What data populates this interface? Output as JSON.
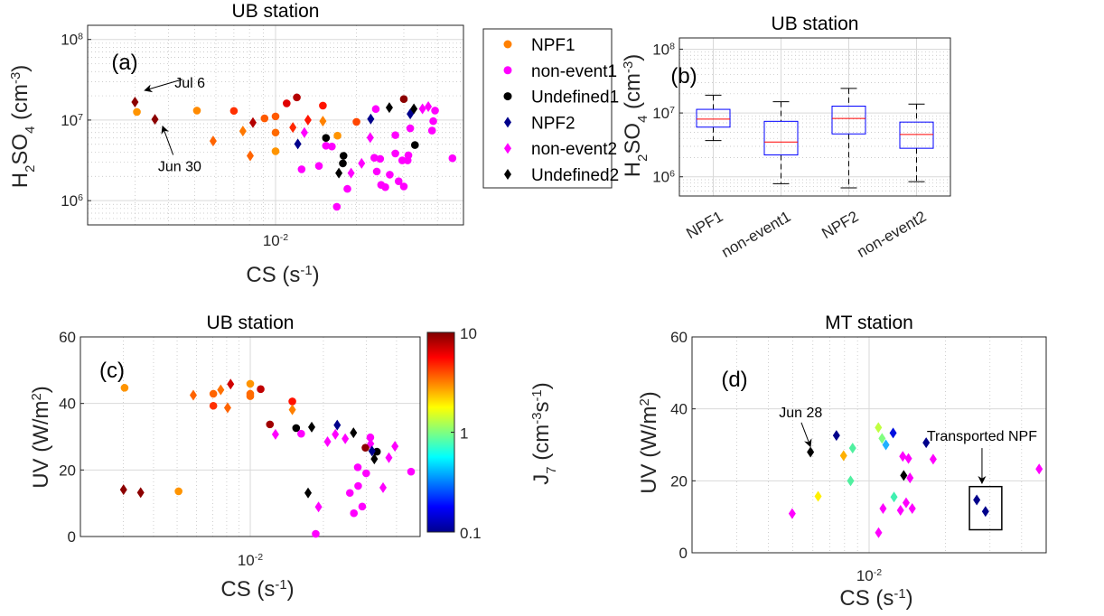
{
  "colors": {
    "npf1": "#FF8000",
    "non_event": "#FF00FF",
    "undefined": "#000000",
    "npf2": "#00008B",
    "box": "#0000FF",
    "median": "#FF0000"
  },
  "chart_data": [
    {
      "panel": "a",
      "type": "scatter",
      "title": "UB station",
      "panel_label": "(a)",
      "xlabel": "CS (s^{-1})",
      "ylabel": "H_{2}SO_{4} (cm^{-3})",
      "xscale": "log",
      "yscale": "log",
      "xlim": [
        0.002,
        0.05
      ],
      "ylim": [
        500000,
        150000000
      ],
      "xticks": [
        {
          "value": 0.01,
          "label": "10^{-2}"
        }
      ],
      "yticks": [
        {
          "value": 1000000,
          "label": "10^{6}"
        },
        {
          "value": 10000000,
          "label": "10^{7}"
        },
        {
          "value": 100000000,
          "label": "10^{8}"
        }
      ],
      "grid": true,
      "legend": {
        "position": "outside-right",
        "entries": [
          {
            "label": "NPF1",
            "marker": "circle",
            "color": "#FF8000"
          },
          {
            "label": "non-event1",
            "marker": "circle",
            "color": "#FF00FF"
          },
          {
            "label": "Undefined1",
            "marker": "circle",
            "color": "#000000"
          },
          {
            "label": "NPF2",
            "marker": "diamond",
            "color": "#00008B"
          },
          {
            "label": "non-event2",
            "marker": "diamond",
            "color": "#FF00FF"
          },
          {
            "label": "Undefined2",
            "marker": "diamond",
            "color": "#000000"
          }
        ]
      },
      "annotations": [
        {
          "text": "Jul 6",
          "text_at": [
            0.0048,
            28600000
          ],
          "arrow_from": [
            0.0045,
            32000000
          ],
          "arrow_to": [
            0.00326,
            23300000
          ]
        },
        {
          "text": "Jun 30",
          "text_at": [
            0.0044,
            2640000
          ],
          "arrow_from": [
            0.00416,
            3700000
          ],
          "arrow_to": [
            0.0038,
            8400000
          ]
        }
      ],
      "points": [
        [
          0.00305,
          12600000,
          "#FF9400",
          "o"
        ],
        [
          0.0051,
          13100000,
          "#FF8A00",
          "o"
        ],
        [
          0.007,
          13000000,
          "#FF3000",
          "o"
        ],
        [
          0.0091,
          10500000,
          "#FF5A00",
          "o"
        ],
        [
          0.01,
          11100000,
          "#FF5A00",
          "o"
        ],
        [
          0.01,
          7000000,
          "#FF6A00",
          "o"
        ],
        [
          0.01,
          4100000,
          "#FF9400",
          "o"
        ],
        [
          0.011,
          16100000,
          "#E00000",
          "o"
        ],
        [
          0.012,
          19100000,
          "#B40000",
          "o"
        ],
        [
          0.015,
          15100000,
          "#FF1400",
          "o"
        ],
        [
          0.02,
          9500000,
          "#FF4600",
          "o"
        ],
        [
          0.017,
          6400000,
          "#FF9400",
          "o"
        ],
        [
          0.03,
          18200000,
          "#8C0000",
          "o"
        ],
        [
          0.0154,
          6000000,
          "#000000",
          "o"
        ],
        [
          0.0179,
          3600000,
          "#000000",
          "o"
        ],
        [
          0.0178,
          2900000,
          "#000000",
          "o"
        ],
        [
          0.033,
          4900000,
          "#000000",
          "o"
        ],
        [
          0.0125,
          2450000,
          "#FF00FF",
          "o"
        ],
        [
          0.0145,
          2700000,
          "#FF00FF",
          "o"
        ],
        [
          0.0154,
          4800000,
          "#FF00FF",
          "o"
        ],
        [
          0.0162,
          4700000,
          "#FF00FF",
          "o"
        ],
        [
          0.0169,
          840000,
          "#FF00FF",
          "o"
        ],
        [
          0.0185,
          1400000,
          "#FF00FF",
          "o"
        ],
        [
          0.0236,
          13700000,
          "#FF00FF",
          "o"
        ],
        [
          0.0233,
          3400000,
          "#FF00FF",
          "o"
        ],
        [
          0.0245,
          3300000,
          "#FF00FF",
          "o"
        ],
        [
          0.0238,
          2300000,
          "#FF00FF",
          "o"
        ],
        [
          0.0247,
          1570000,
          "#FF00FF",
          "o"
        ],
        [
          0.0256,
          1470000,
          "#FF00FF",
          "o"
        ],
        [
          0.0266,
          2100000,
          "#FF00FF",
          "o"
        ],
        [
          0.0279,
          6500000,
          "#FF00FF",
          "o"
        ],
        [
          0.0279,
          3850000,
          "#FF00FF",
          "o"
        ],
        [
          0.0287,
          1740000,
          "#FF00FF",
          "o"
        ],
        [
          0.03,
          1500000,
          "#FF00FF",
          "o"
        ],
        [
          0.0296,
          3160000,
          "#FF00FF",
          "o"
        ],
        [
          0.031,
          3160000,
          "#FF00FF",
          "o"
        ],
        [
          0.0312,
          3650000,
          "#FF00FF",
          "o"
        ],
        [
          0.0317,
          7900000,
          "#FF00FF",
          "o"
        ],
        [
          0.0392,
          13100000,
          "#FF00FF",
          "o"
        ],
        [
          0.0382,
          7400000,
          "#FF00FF",
          "o"
        ],
        [
          0.0386,
          9700000,
          "#FF00FF",
          "o"
        ],
        [
          0.0455,
          3360000,
          "#FF00FF",
          "o"
        ],
        [
          0.003,
          16700000,
          "#8C0000",
          "d"
        ],
        [
          0.00356,
          10200000,
          "#8C0000",
          "d"
        ],
        [
          0.00824,
          9300000,
          "#B40000",
          "d"
        ],
        [
          0.00586,
          5500000,
          "#FF6400",
          "d"
        ],
        [
          0.00756,
          7300000,
          "#FF7800",
          "d"
        ],
        [
          0.00805,
          3600000,
          "#FF6400",
          "d"
        ],
        [
          0.0116,
          8100000,
          "#FF2800",
          "d"
        ],
        [
          0.0132,
          10000000,
          "#FF1400",
          "d"
        ],
        [
          0.015,
          9700000,
          "#FF8200",
          "d"
        ],
        [
          0.0121,
          5060000,
          "#00008B",
          "d"
        ],
        [
          0.0226,
          10300000,
          "#00008B",
          "d"
        ],
        [
          0.0317,
          11900000,
          "#00008B",
          "d"
        ],
        [
          0.0172,
          2200000,
          "#000000",
          "d"
        ],
        [
          0.0265,
          14300000,
          "#000000",
          "d"
        ],
        [
          0.0327,
          13800000,
          "#000000",
          "d"
        ],
        [
          0.0128,
          7000000,
          "#FF00FF",
          "d"
        ],
        [
          0.0225,
          6050000,
          "#FF00FF",
          "d"
        ],
        [
          0.0191,
          2200000,
          "#FF00FF",
          "d"
        ],
        [
          0.0209,
          2900000,
          "#FF00FF",
          "d"
        ],
        [
          0.0352,
          13800000,
          "#FF00FF",
          "d"
        ],
        [
          0.037,
          14700000,
          "#FF00FF",
          "d"
        ]
      ]
    },
    {
      "panel": "b",
      "type": "box",
      "title": "UB station",
      "panel_label": "(b)",
      "ylabel": "H_{2}SO_{4} (cm^{-3})",
      "yscale": "log",
      "ylim": [
        500000,
        150000000
      ],
      "yticks": [
        {
          "value": 1000000,
          "label": "10^{6}"
        },
        {
          "value": 10000000,
          "label": "10^{7}"
        },
        {
          "value": 100000000,
          "label": "10^{8}"
        }
      ],
      "grid": true,
      "categories": [
        "NPF1",
        "non-event1",
        "NPF2",
        "non-event2"
      ],
      "boxes": [
        {
          "whisker_low": 3700000,
          "q1": 6000000,
          "median": 8000000,
          "q3": 11400000,
          "whisker_high": 19000000
        },
        {
          "whisker_low": 780000,
          "q1": 2200000,
          "median": 3500000,
          "q3": 7400000,
          "whisker_high": 15000000
        },
        {
          "whisker_low": 670000,
          "q1": 4700000,
          "median": 8200000,
          "q3": 12800000,
          "whisker_high": 24300000
        },
        {
          "whisker_low": 840000,
          "q1": 2800000,
          "median": 4600000,
          "q3": 7200000,
          "whisker_high": 13800000
        }
      ]
    },
    {
      "panel": "c",
      "type": "scatter",
      "title": "UB station",
      "panel_label": "(c)",
      "xlabel": "CS (s^{-1})",
      "ylabel": "UV (W/m^{2})",
      "xscale": "log",
      "xlim": [
        0.002,
        0.05
      ],
      "ylim": [
        0,
        60
      ],
      "xticks": [
        {
          "value": 0.01,
          "label": "10^{-2}"
        }
      ],
      "yticks": [
        {
          "value": 0,
          "label": "0"
        },
        {
          "value": 20,
          "label": "20"
        },
        {
          "value": 40,
          "label": "40"
        },
        {
          "value": 60,
          "label": "60"
        }
      ],
      "grid": true,
      "colorbar": {
        "label": "J_{7} (cm^{-3}s^{-1})",
        "scale": "log",
        "range": [
          0.1,
          10
        ],
        "colormap": "jet",
        "ticks": [
          {
            "value": 10,
            "label": "10"
          },
          {
            "value": 1,
            "label": "1"
          },
          {
            "value": 0.1,
            "label": "0.1"
          }
        ]
      },
      "points": [
        [
          0.00304,
          44.7,
          "#FF9400",
          "o"
        ],
        [
          0.00507,
          13.6,
          "#FF9400",
          "o"
        ],
        [
          0.00705,
          42.9,
          "#FF6400",
          "o"
        ],
        [
          0.00705,
          39.3,
          "#FF3000",
          "o"
        ],
        [
          0.01,
          45.9,
          "#FF9400",
          "o"
        ],
        [
          0.01,
          42.9,
          "#FF6A00",
          "o"
        ],
        [
          0.01,
          42.2,
          "#FF6A00",
          "o"
        ],
        [
          0.01104,
          44.3,
          "#C00000",
          "o"
        ],
        [
          0.01205,
          33.7,
          "#A00000",
          "o"
        ],
        [
          0.0149,
          40.6,
          "#FF1000",
          "o"
        ],
        [
          0.01545,
          32.6,
          "#000000",
          "o"
        ],
        [
          0.0162,
          30.9,
          "#FF00FF",
          "o"
        ],
        [
          0.0298,
          26.7,
          "#8C0000",
          "o"
        ],
        [
          0.0332,
          25.5,
          "#000000",
          "o"
        ],
        [
          0.0186,
          0.8,
          "#FF00FF",
          "o"
        ],
        [
          0.0277,
          20.8,
          "#FF00FF",
          "o"
        ],
        [
          0.03,
          19.0,
          "#FF00FF",
          "o"
        ],
        [
          0.0278,
          15.2,
          "#FF00FF",
          "o"
        ],
        [
          0.0257,
          13.1,
          "#FF00FF",
          "o"
        ],
        [
          0.0267,
          7.0,
          "#FF00FF",
          "o"
        ],
        [
          0.0289,
          9.0,
          "#FF00FF",
          "o"
        ],
        [
          0.0312,
          29.8,
          "#FF00FF",
          "o"
        ],
        [
          0.0459,
          19.5,
          "#FF00FF",
          "o"
        ],
        [
          0.00301,
          14.1,
          "#8C0000",
          "d"
        ],
        [
          0.00354,
          13.2,
          "#8C0000",
          "d"
        ],
        [
          0.00583,
          42.5,
          "#FF6400",
          "d"
        ],
        [
          0.00756,
          44.1,
          "#FF7000",
          "d"
        ],
        [
          0.00807,
          38.7,
          "#FF6400",
          "d"
        ],
        [
          0.0083,
          45.8,
          "#D00000",
          "d"
        ],
        [
          0.0149,
          38.1,
          "#FF8000",
          "d"
        ],
        [
          0.0127,
          30.7,
          "#FF00FF",
          "d"
        ],
        [
          0.0191,
          8.9,
          "#FF00FF",
          "d"
        ],
        [
          0.0208,
          28.5,
          "#FF00FF",
          "d"
        ],
        [
          0.0224,
          30.7,
          "#FF00FF",
          "d"
        ],
        [
          0.0246,
          29.4,
          "#FF00FF",
          "d"
        ],
        [
          0.0313,
          27.9,
          "#FF00FF",
          "d"
        ],
        [
          0.0352,
          14.7,
          "#FF00FF",
          "d"
        ],
        [
          0.0372,
          23.7,
          "#FF00FF",
          "d"
        ],
        [
          0.0394,
          27.1,
          "#FF00FF",
          "d"
        ],
        [
          0.0228,
          33.5,
          "#00008B",
          "d"
        ],
        [
          0.0317,
          25.7,
          "#00008B",
          "d"
        ],
        [
          0.0179,
          32.9,
          "#000000",
          "d"
        ],
        [
          0.0173,
          13.1,
          "#000000",
          "d"
        ],
        [
          0.0266,
          31.2,
          "#000000",
          "d"
        ],
        [
          0.0324,
          23.3,
          "#000000",
          "d"
        ]
      ]
    },
    {
      "panel": "d",
      "type": "scatter",
      "title": "MT station",
      "panel_label": "(d)",
      "xlabel": "CS (s^{-1})",
      "ylabel": "UV (W/m^{2})",
      "xscale": "log",
      "xlim": [
        0.002,
        0.05
      ],
      "ylim": [
        0,
        60
      ],
      "xticks": [
        {
          "value": 0.01,
          "label": "10^{-2}"
        }
      ],
      "yticks": [
        {
          "value": 0,
          "label": "0"
        },
        {
          "value": 20,
          "label": "20"
        },
        {
          "value": 40,
          "label": "40"
        },
        {
          "value": 60,
          "label": "60"
        }
      ],
      "grid": true,
      "annotations": [
        {
          "text": "Jun 28",
          "text_at": [
            0.00537,
            38.9
          ],
          "arrow_from": [
            0.0054,
            36.2
          ],
          "arrow_to": [
            0.00587,
            29.5
          ]
        },
        {
          "text": "Transported NPF",
          "text_at": [
            0.0279,
            32.4
          ],
          "arrow_from": [
            0.0279,
            29.1
          ],
          "arrow_to": [
            0.0279,
            19.3
          ]
        }
      ],
      "highlight_box": {
        "x": [
          0.0249,
          0.0334
        ],
        "y": [
          6.4,
          18.4
        ]
      },
      "points": [
        [
          0.00497,
          10.9,
          "#FF00FF",
          "d"
        ],
        [
          0.00587,
          28.0,
          "#000000",
          "d"
        ],
        [
          0.00629,
          15.7,
          "#FFF000",
          "d"
        ],
        [
          0.00743,
          32.6,
          "#00008B",
          "d"
        ],
        [
          0.00793,
          27.0,
          "#FFB000",
          "d"
        ],
        [
          0.00861,
          29.1,
          "#50F0A0",
          "d"
        ],
        [
          0.00845,
          20.0,
          "#50F0A0",
          "d"
        ],
        [
          0.01088,
          34.8,
          "#C0FF40",
          "d"
        ],
        [
          0.01125,
          31.8,
          "#80FF80",
          "d"
        ],
        [
          0.0109,
          5.6,
          "#FF00FF",
          "d"
        ],
        [
          0.01135,
          12.3,
          "#FF00FF",
          "d"
        ],
        [
          0.01165,
          30.0,
          "#20B0FF",
          "d"
        ],
        [
          0.01244,
          33.3,
          "#0010E0",
          "d"
        ],
        [
          0.01254,
          15.5,
          "#40F0B0",
          "d"
        ],
        [
          0.01358,
          26.8,
          "#FF00FF",
          "d"
        ],
        [
          0.0143,
          26.2,
          "#FF00FF",
          "d"
        ],
        [
          0.0137,
          21.5,
          "#000000",
          "d"
        ],
        [
          0.0145,
          20.8,
          "#FF00FF",
          "d"
        ],
        [
          0.0133,
          11.8,
          "#FF00FF",
          "d"
        ],
        [
          0.014,
          13.9,
          "#FF00FF",
          "d"
        ],
        [
          0.0148,
          12.3,
          "#FF00FF",
          "d"
        ],
        [
          0.0168,
          30.6,
          "#00008B",
          "d"
        ],
        [
          0.0179,
          26.0,
          "#FF00FF",
          "d"
        ],
        [
          0.0266,
          14.7,
          "#00008B",
          "d"
        ],
        [
          0.0288,
          11.5,
          "#00008B",
          "d"
        ],
        [
          0.0469,
          23.3,
          "#FF00FF",
          "d"
        ]
      ]
    }
  ]
}
